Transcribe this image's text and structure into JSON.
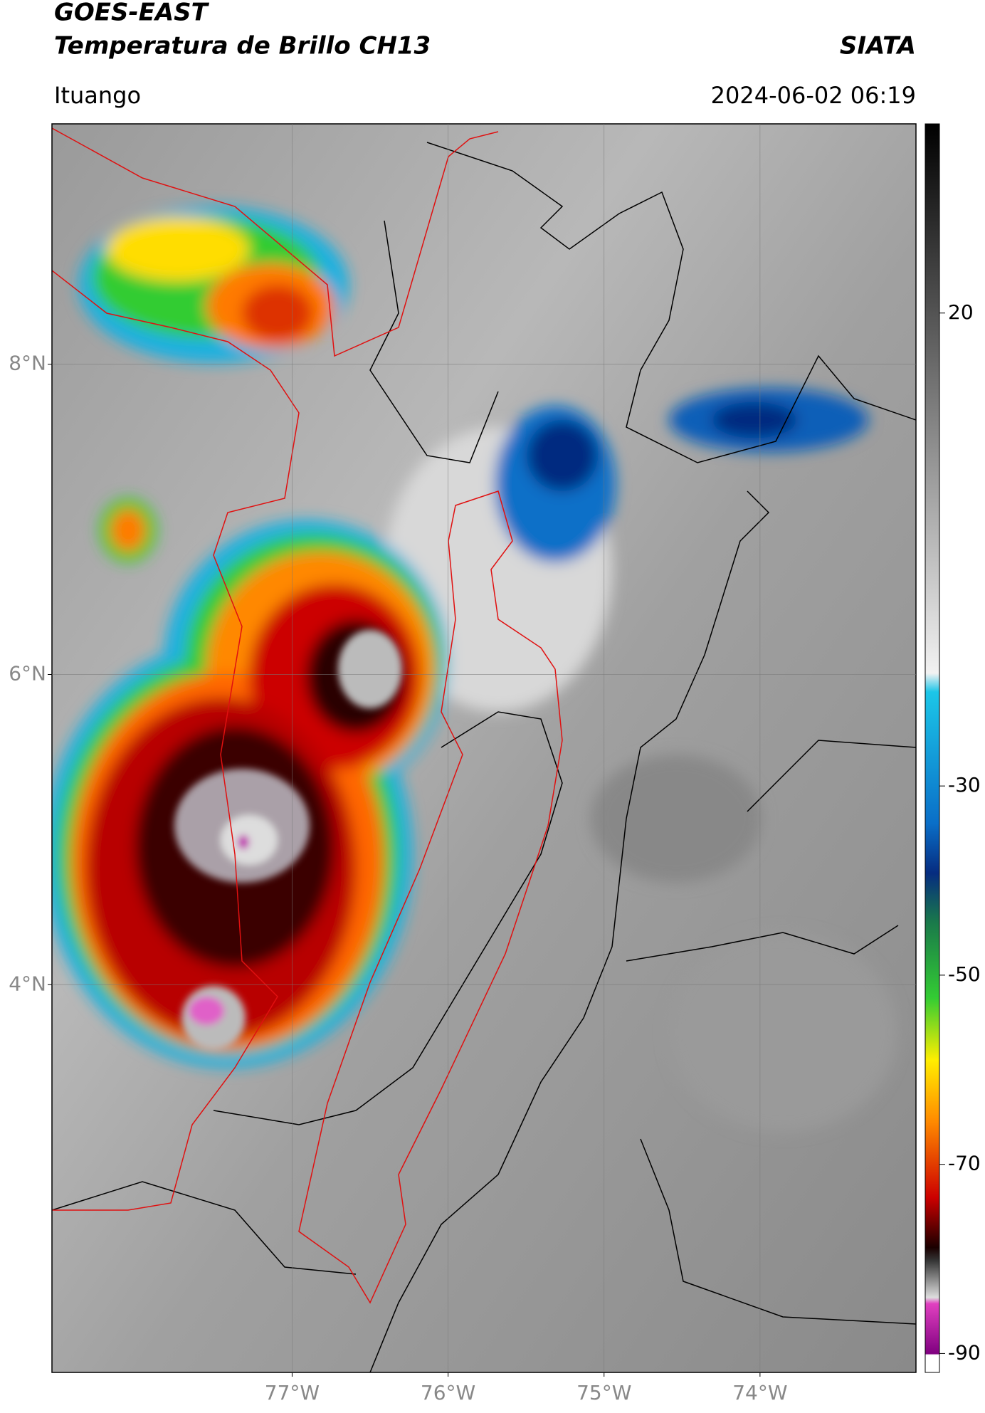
{
  "header": {
    "title": "GOES-EAST",
    "subtitle": "Temperatura de Brillo CH13",
    "credit": "SIATA",
    "location": "Ituango",
    "datetime": "2024-06-02 06:19"
  },
  "map": {
    "latlim": [
      1.5,
      9.55
    ],
    "lonlim": [
      -78.54,
      -73.0
    ],
    "lat_ticks": [
      {
        "value": 8,
        "label": "8°N"
      },
      {
        "value": 6,
        "label": "6°N"
      },
      {
        "value": 4,
        "label": "4°N"
      }
    ],
    "lon_ticks": [
      {
        "value": -77,
        "label": "77°W"
      },
      {
        "value": -76,
        "label": "76°W"
      },
      {
        "value": -75,
        "label": "75°W"
      },
      {
        "value": -74,
        "label": "74°W"
      }
    ],
    "grid": true
  },
  "colorbar": {
    "ylim": [
      -92,
      40
    ],
    "yticks": [
      20,
      -30,
      -50,
      -70,
      -90
    ]
  }
}
